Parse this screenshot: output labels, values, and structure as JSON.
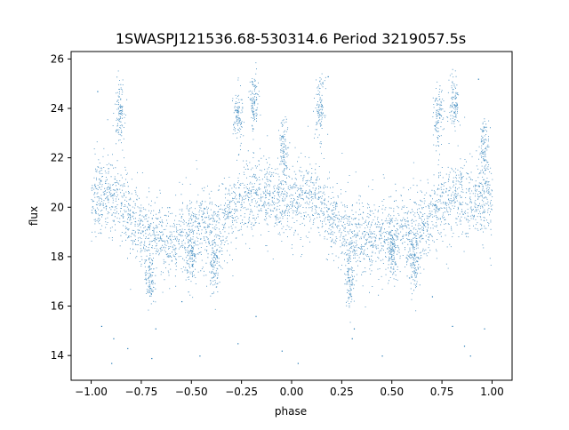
{
  "chart_data": {
    "type": "scatter",
    "title": "1SWASPJ121536.68-530314.6 Period 3219057.5s",
    "xlabel": "phase",
    "ylabel": "flux",
    "xlim": [
      -1.1,
      1.1
    ],
    "ylim": [
      13.0,
      26.3
    ],
    "xticks": [
      -1.0,
      -0.75,
      -0.5,
      -0.25,
      0.0,
      0.25,
      0.5,
      0.75,
      1.0
    ],
    "xtick_labels": [
      "−1.00",
      "−0.75",
      "−0.50",
      "−0.25",
      "0.00",
      "0.25",
      "0.50",
      "0.75",
      "1.00"
    ],
    "yticks": [
      14,
      16,
      18,
      20,
      22,
      24,
      26
    ],
    "ytick_labels": [
      "14",
      "16",
      "18",
      "20",
      "22",
      "24",
      "26"
    ],
    "grid": false,
    "marker_color": "#1f77b4",
    "series": [
      {
        "trend": {
          "phase": [
            0.0,
            0.05,
            0.1,
            0.15,
            0.2,
            0.25,
            0.3,
            0.35,
            0.4,
            0.45,
            0.5,
            0.55,
            0.6,
            0.65,
            0.7,
            0.75,
            0.8,
            0.85,
            0.9,
            0.95,
            1.0
          ],
          "flux": [
            20.3,
            20.4,
            20.5,
            20.1,
            19.5,
            19.2,
            19.0,
            18.8,
            18.6,
            18.8,
            19.1,
            19.2,
            19.0,
            19.2,
            19.8,
            20.2,
            20.5,
            20.4,
            20.3,
            20.2,
            20.3
          ]
        },
        "scatter_width": 1.2,
        "dips": [
          {
            "phase": 0.29,
            "flux": 17.2
          },
          {
            "phase": 0.61,
            "flux": 17.7
          },
          {
            "phase": 0.5,
            "flux": 18.0
          }
        ],
        "bursts": [
          {
            "phase": 0.14,
            "flux": 24.0
          },
          {
            "phase": 0.81,
            "flux": 24.2
          },
          {
            "phase": 0.73,
            "flux": 23.6
          },
          {
            "phase": 0.96,
            "flux": 22.4
          }
        ],
        "sparse_outliers": [
          {
            "x": -0.97,
            "y": 24.7
          },
          {
            "x": -0.95,
            "y": 15.2
          },
          {
            "x": -0.9,
            "y": 13.7
          },
          {
            "x": -0.89,
            "y": 14.7
          },
          {
            "x": -0.82,
            "y": 14.3
          },
          {
            "x": -0.7,
            "y": 13.9
          },
          {
            "x": -0.68,
            "y": 15.1
          },
          {
            "x": -0.46,
            "y": 14.0
          },
          {
            "x": -0.27,
            "y": 14.5
          },
          {
            "x": -0.18,
            "y": 15.6
          },
          {
            "x": -0.05,
            "y": 14.2
          },
          {
            "x": 0.03,
            "y": 13.7
          },
          {
            "x": 0.3,
            "y": 14.7
          },
          {
            "x": 0.31,
            "y": 15.1
          },
          {
            "x": 0.45,
            "y": 14.0
          },
          {
            "x": 0.8,
            "y": 15.2
          },
          {
            "x": 0.86,
            "y": 14.4
          },
          {
            "x": 0.89,
            "y": 14.0
          },
          {
            "x": 0.96,
            "y": 15.1
          },
          {
            "x": -0.2,
            "y": 25.1
          },
          {
            "x": 0.18,
            "y": 25.3
          },
          {
            "x": 0.93,
            "y": 25.2
          },
          {
            "x": -0.55,
            "y": 16.2
          },
          {
            "x": 0.7,
            "y": 16.4
          }
        ]
      }
    ]
  }
}
